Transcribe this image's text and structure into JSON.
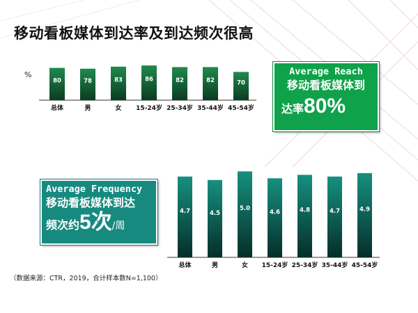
{
  "slide": {
    "title": "移动看板媒体到达率及到达频次很高",
    "source": "（数据来源：CTR，2019，合计样本数N=1,100）"
  },
  "reach_callout": {
    "en": "Average Reach",
    "cn_line1": "移动看板媒体到",
    "cn_line2_prefix": "达率",
    "big_value": "80%"
  },
  "frequency_callout": {
    "en": "Average Frequency",
    "cn_line1": "移动看板媒体到达",
    "cn_line2_prefix": "频次约",
    "big_value": "5次",
    "unit": "/周"
  },
  "colors": {
    "reach_box": "#0fa24a",
    "frequency_box": "#178a80",
    "reach_bar_top": "#1f8a4c",
    "reach_bar_bottom": "#0c3b22",
    "freq_bar_top": "#16907f",
    "freq_bar_bottom": "#062e29"
  },
  "chart_data": [
    {
      "type": "bar",
      "unit_label": "%",
      "categories": [
        "总体",
        "男",
        "女",
        "15-24岁",
        "25-34岁",
        "35-44岁",
        "45-54岁"
      ],
      "values": [
        80,
        78,
        83,
        86,
        82,
        82,
        70
      ],
      "data_labels": [
        "80",
        "78",
        "83",
        "86",
        "82",
        "82",
        "70"
      ],
      "ylim": [
        0,
        100
      ]
    },
    {
      "type": "bar",
      "categories": [
        "总体",
        "男",
        "女",
        "15-24岁",
        "25-34岁",
        "35-44岁",
        "45-54岁"
      ],
      "values": [
        4.7,
        4.5,
        5.0,
        4.6,
        4.8,
        4.7,
        4.9
      ],
      "data_labels": [
        "4.7",
        "4.5",
        "5.0",
        "4.6",
        "4.8",
        "4.7",
        "4.9"
      ],
      "ylim": [
        0,
        5.3
      ]
    }
  ]
}
